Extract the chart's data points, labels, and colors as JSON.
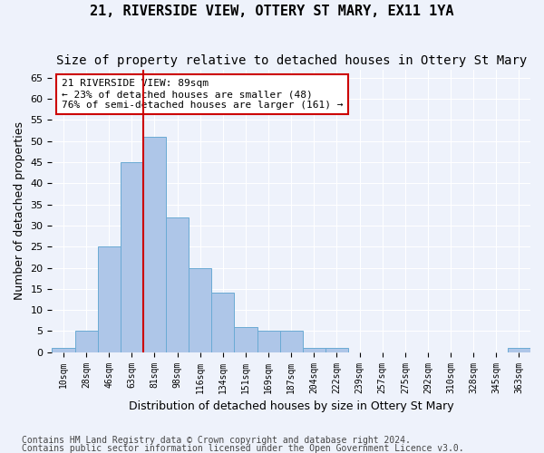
{
  "title": "21, RIVERSIDE VIEW, OTTERY ST MARY, EX11 1YA",
  "subtitle": "Size of property relative to detached houses in Ottery St Mary",
  "xlabel": "Distribution of detached houses by size in Ottery St Mary",
  "ylabel": "Number of detached properties",
  "bin_labels": [
    "10sqm",
    "28sqm",
    "46sqm",
    "63sqm",
    "81sqm",
    "98sqm",
    "116sqm",
    "134sqm",
    "151sqm",
    "169sqm",
    "187sqm",
    "204sqm",
    "222sqm",
    "239sqm",
    "257sqm",
    "275sqm",
    "292sqm",
    "310sqm",
    "328sqm",
    "345sqm",
    "363sqm"
  ],
  "bar_values": [
    1,
    5,
    25,
    45,
    51,
    32,
    20,
    14,
    6,
    5,
    5,
    1,
    1,
    0,
    0,
    0,
    0,
    0,
    0,
    0,
    1
  ],
  "bar_color": "#aec6e8",
  "bar_edge_color": "#6aaad4",
  "vline_x": 3.5,
  "vline_color": "#cc0000",
  "annotation_text": "21 RIVERSIDE VIEW: 89sqm\n← 23% of detached houses are smaller (48)\n76% of semi-detached houses are larger (161) →",
  "annotation_box_color": "white",
  "annotation_box_edge": "#cc0000",
  "ylim": [
    0,
    67
  ],
  "yticks": [
    0,
    5,
    10,
    15,
    20,
    25,
    30,
    35,
    40,
    45,
    50,
    55,
    60,
    65
  ],
  "footer1": "Contains HM Land Registry data © Crown copyright and database right 2024.",
  "footer2": "Contains public sector information licensed under the Open Government Licence v3.0.",
  "bg_color": "#eef2fb",
  "grid_color": "white",
  "title_fontsize": 11,
  "subtitle_fontsize": 10
}
